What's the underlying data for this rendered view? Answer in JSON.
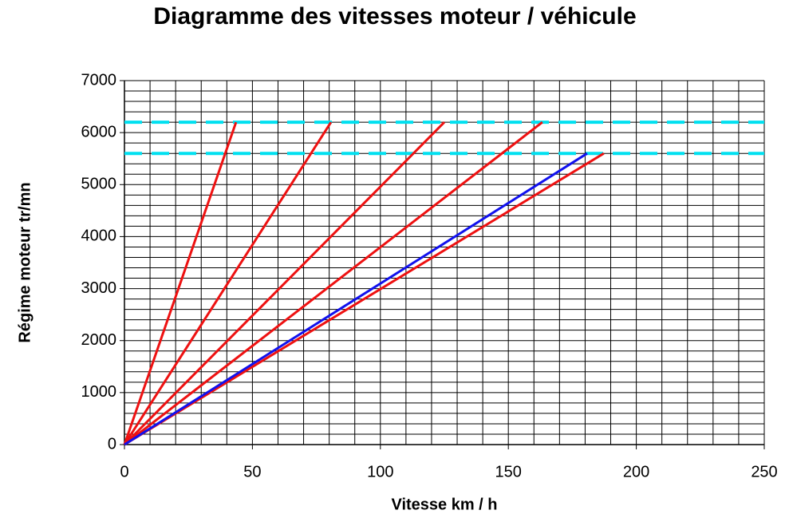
{
  "chart_data": {
    "type": "line",
    "title": "Diagramme des vitesses moteur / véhicule",
    "x_label": "Vitesse km / h",
    "y_label": "Régime moteur tr/mn",
    "xlim": [
      0,
      250
    ],
    "ylim": [
      0,
      7000
    ],
    "xticks": [
      0,
      50,
      100,
      150,
      200,
      250
    ],
    "yticks": [
      0,
      1000,
      2000,
      3000,
      4000,
      5000,
      6000,
      7000
    ],
    "x_minor_ticks": [
      0,
      10,
      20,
      30,
      40,
      50,
      60,
      70,
      80,
      90,
      100,
      110,
      120,
      130,
      140,
      150,
      160,
      170,
      180,
      190,
      200,
      210,
      220,
      230,
      240,
      250
    ],
    "y_minor_ticks": [
      0,
      200,
      400,
      600,
      800,
      1000,
      1200,
      1400,
      1600,
      1800,
      2000,
      2200,
      2400,
      2600,
      2800,
      3000,
      3200,
      3400,
      3600,
      3800,
      4000,
      4200,
      4400,
      4600,
      4800,
      5000,
      5200,
      5400,
      5600,
      5800,
      6000,
      6200,
      6400,
      6600,
      6800,
      7000
    ],
    "grid": true,
    "series": [
      {
        "color": "#00e0f0",
        "dashed": true,
        "x": [
          0,
          250
        ],
        "values": [
          6200,
          6200
        ]
      },
      {
        "color": "#00e0f0",
        "dashed": true,
        "x": [
          0,
          250
        ],
        "values": [
          5600,
          5600
        ]
      },
      {
        "color": "#ee1111",
        "x": [
          0,
          43.6
        ],
        "values": [
          0,
          6200
        ]
      },
      {
        "color": "#ee1111",
        "x": [
          0,
          80.7
        ],
        "values": [
          0,
          6200
        ]
      },
      {
        "color": "#ee1111",
        "x": [
          0,
          125
        ],
        "values": [
          0,
          6200
        ]
      },
      {
        "color": "#ee1111",
        "x": [
          0,
          163.3
        ],
        "values": [
          0,
          6200
        ]
      },
      {
        "color": "#ee1111",
        "x": [
          0,
          187.3
        ],
        "values": [
          0,
          5600
        ]
      },
      {
        "color": "#1111ee",
        "x": [
          0,
          180.8
        ],
        "values": [
          0,
          5600
        ]
      }
    ]
  }
}
